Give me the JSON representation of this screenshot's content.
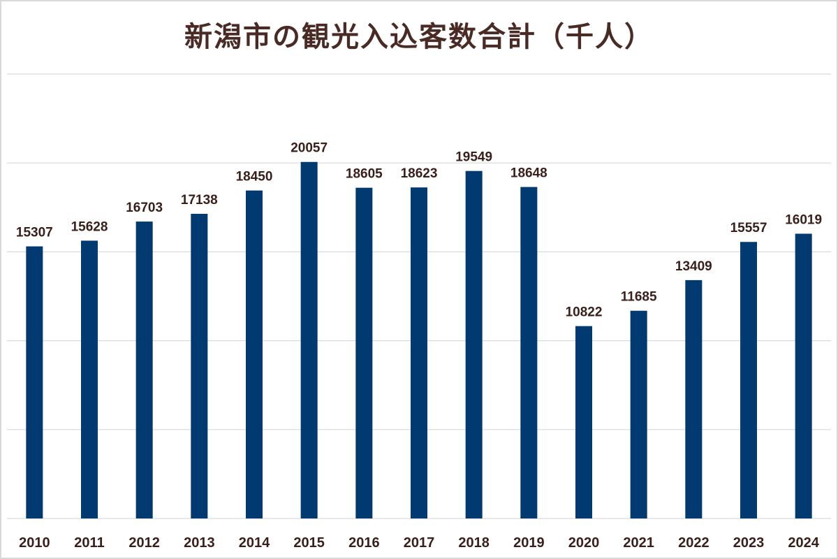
{
  "chart_data": {
    "type": "bar",
    "title": "新潟市の観光入込客数合計（千人）",
    "categories": [
      "2010",
      "2011",
      "2012",
      "2013",
      "2014",
      "2015",
      "2016",
      "2017",
      "2018",
      "2019",
      "2020",
      "2021",
      "2022",
      "2023",
      "2024"
    ],
    "values": [
      15307,
      15628,
      16703,
      17138,
      18450,
      20057,
      18605,
      18623,
      19549,
      18648,
      10822,
      11685,
      13409,
      15557,
      16019
    ],
    "xlabel": "",
    "ylabel": "",
    "ylim": [
      0,
      25000
    ],
    "grid": true,
    "legend": "none",
    "bar_color": "#003a70",
    "label_color": "#3a1e1a",
    "title_color": "#4a2a24"
  }
}
